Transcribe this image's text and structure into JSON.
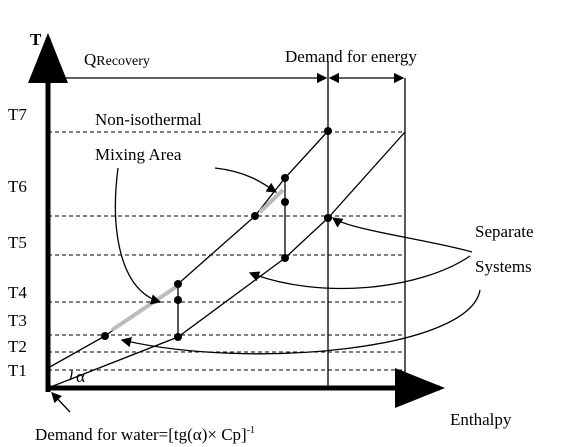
{
  "axes": {
    "y_label": "T",
    "x_label": "Enthalpy"
  },
  "temperature_levels": [
    "T7",
    "T6",
    "T5",
    "T4",
    "T3",
    "T2",
    "T1"
  ],
  "q_recovery": {
    "symbol": "Q",
    "subscript": "Recovery"
  },
  "demand_energy": "Demand for energy",
  "mixing_area": [
    "Non-isothermal",
    "Mixing Area"
  ],
  "separate_systems": [
    "Separate",
    "Systems"
  ],
  "angle": "α",
  "demand_water": {
    "text": "Demand for water=[tg(α)× Cp]",
    "exponent": "-1"
  }
}
